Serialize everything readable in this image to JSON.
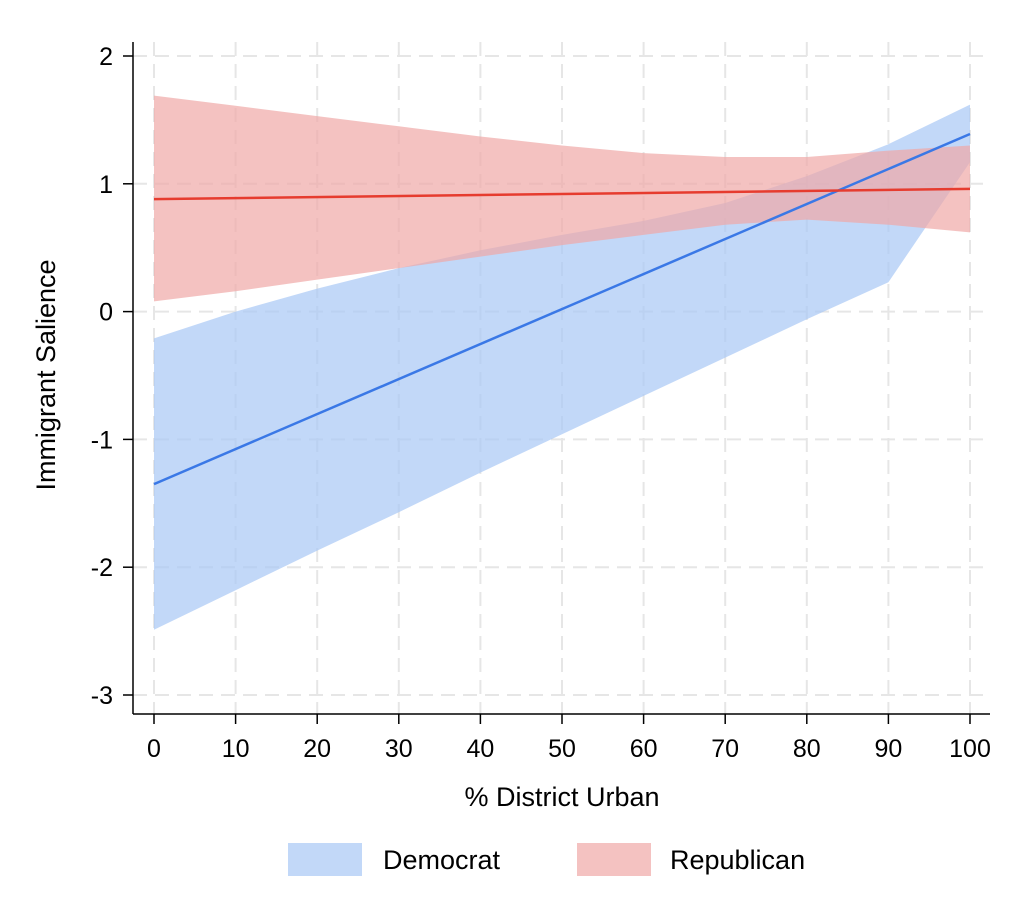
{
  "chart_data": {
    "type": "line",
    "title": "",
    "xlabel": "% District Urban",
    "ylabel": "Immigrant Salience",
    "xlim": [
      0,
      100
    ],
    "ylim": [
      -3,
      2
    ],
    "x_ticks": [
      0,
      10,
      20,
      30,
      40,
      50,
      60,
      70,
      80,
      90,
      100
    ],
    "x_tick_labels": [
      "0",
      "10",
      "20",
      "30",
      "40",
      "50",
      "60",
      "70",
      "80",
      "90",
      "100"
    ],
    "y_ticks": [
      2,
      1,
      0,
      -1,
      -2,
      -3
    ],
    "y_tick_labels": [
      "2",
      "1",
      "0",
      "-1",
      "-2",
      "-3"
    ],
    "grid": true,
    "legend_position": "bottom",
    "series": [
      {
        "name": "Democrat",
        "line_color": "#3a78e6",
        "band_color": "#a8c8f5",
        "x": [
          0,
          100
        ],
        "y": [
          -1.35,
          1.39
        ],
        "ci_x": [
          0,
          10,
          20,
          30,
          40,
          50,
          60,
          70,
          80,
          90,
          100
        ],
        "ci_lower": [
          -2.49,
          -2.18,
          -1.87,
          -1.57,
          -1.26,
          -0.96,
          -0.66,
          -0.36,
          -0.06,
          0.23,
          1.17
        ],
        "ci_upper": [
          -0.21,
          0.0,
          0.18,
          0.34,
          0.48,
          0.6,
          0.71,
          0.85,
          1.06,
          1.31,
          1.62
        ]
      },
      {
        "name": "Republican",
        "line_color": "#e63c2f",
        "band_color": "#f0a8a6",
        "x": [
          0,
          100
        ],
        "y": [
          0.88,
          0.96
        ],
        "ci_x": [
          0,
          10,
          20,
          30,
          40,
          50,
          60,
          70,
          80,
          90,
          100
        ],
        "ci_lower": [
          0.08,
          0.16,
          0.25,
          0.34,
          0.43,
          0.52,
          0.6,
          0.68,
          0.72,
          0.68,
          0.62
        ],
        "ci_upper": [
          1.69,
          1.61,
          1.53,
          1.45,
          1.37,
          1.3,
          1.24,
          1.21,
          1.21,
          1.26,
          1.3
        ]
      }
    ]
  }
}
